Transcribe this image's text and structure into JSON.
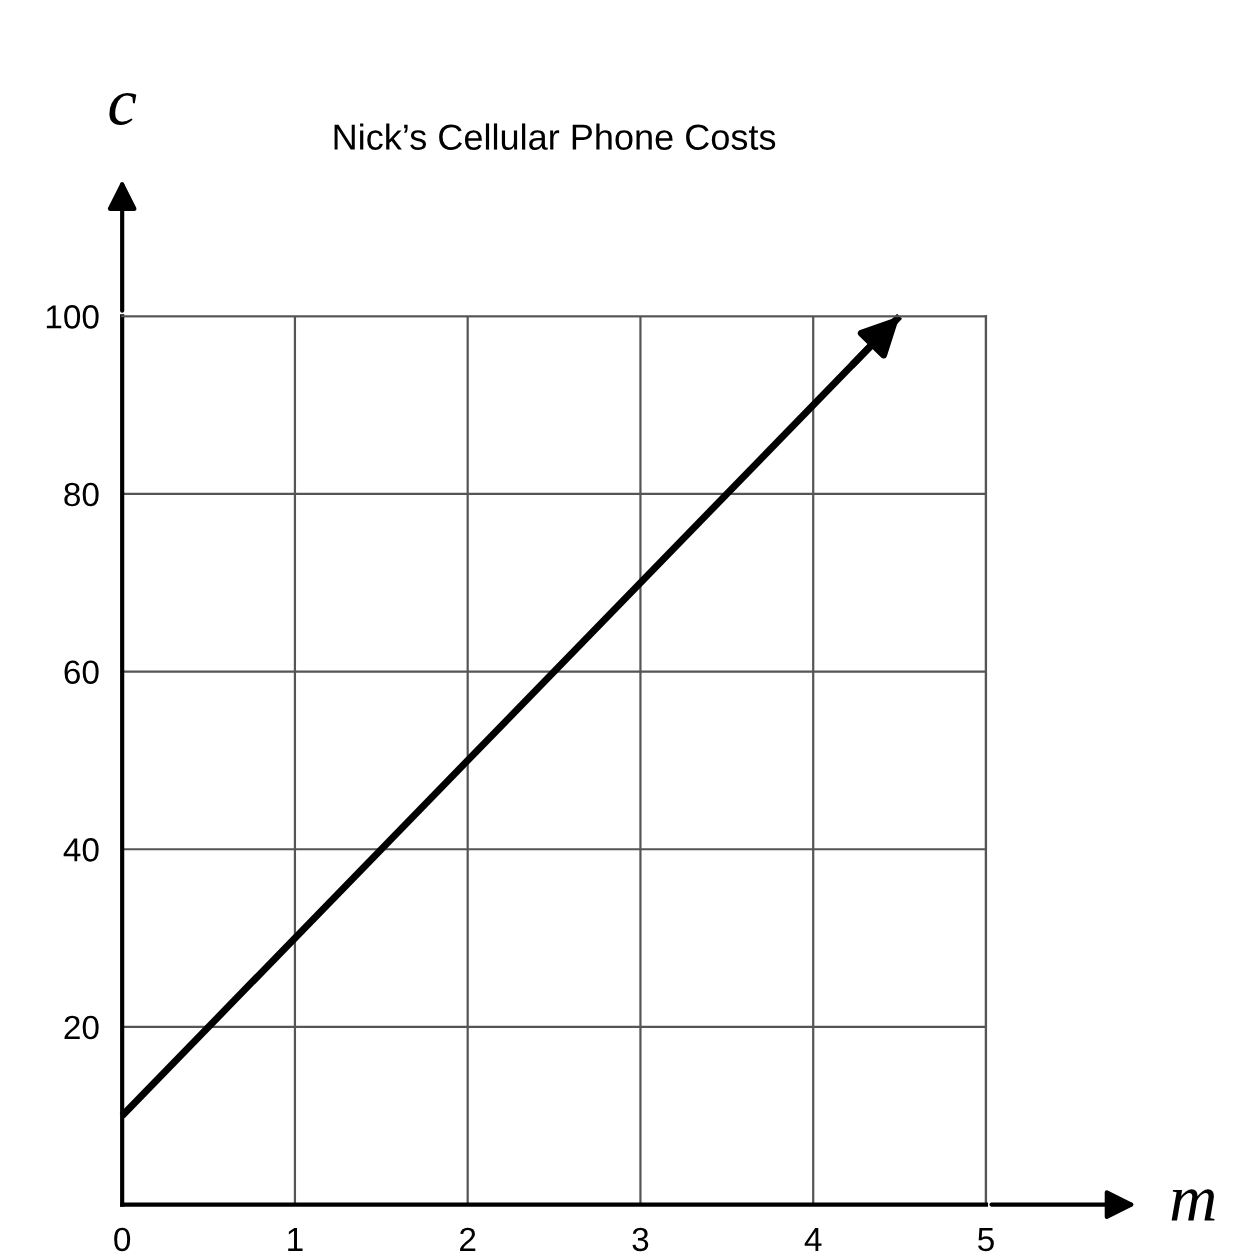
{
  "chart_data": {
    "type": "line",
    "title": "Nick’s Cellular Phone Costs",
    "xlabel": "m",
    "ylabel": "c",
    "x": [
      0,
      4.5
    ],
    "series": [
      {
        "color": "#000000",
        "values": [
          10,
          100
        ]
      }
    ],
    "xlim": [
      0,
      5
    ],
    "ylim": [
      0,
      100
    ],
    "xticks": [
      0,
      1,
      2,
      3,
      4,
      5
    ],
    "yticks": [
      {
        "value": 0,
        "label": null
      },
      20,
      40,
      60,
      80,
      100
    ],
    "grid": true,
    "marker": "none",
    "line_style": "solid"
  }
}
